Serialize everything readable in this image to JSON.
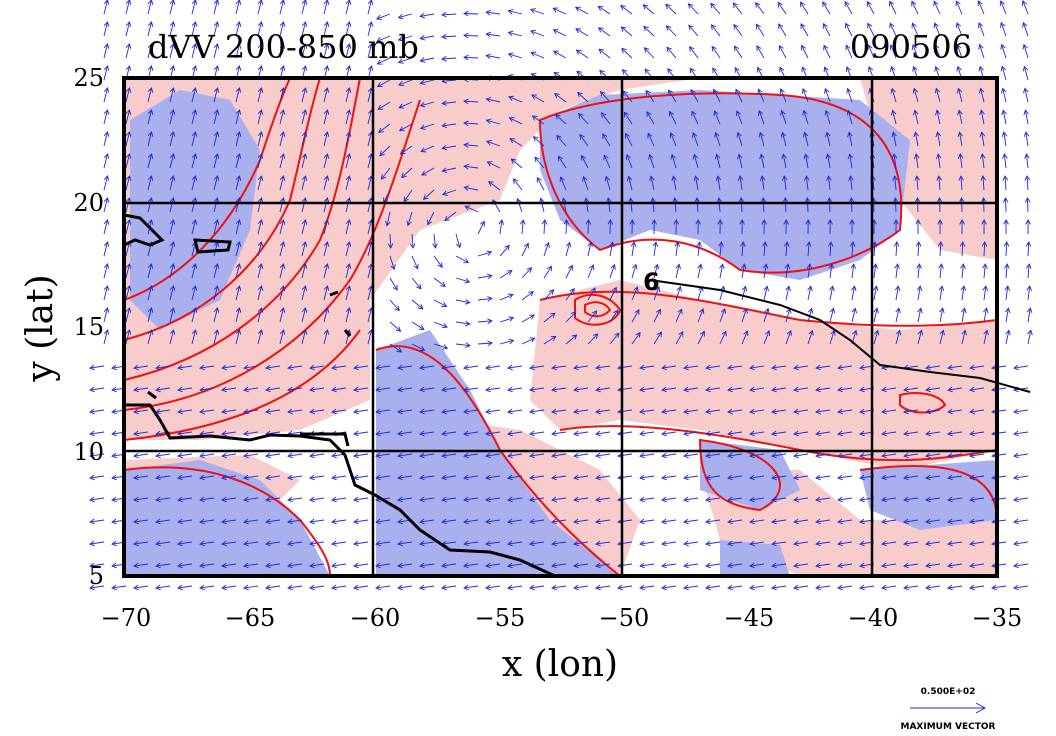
{
  "map": {
    "title_left": "dVV 200-850 mb",
    "title_right": "090506",
    "x_label": "x (lon)",
    "y_label": "y (lat)",
    "x_ticks": [
      "−70",
      "−65",
      "−60",
      "−55",
      "−50",
      "−45",
      "−40",
      "−35"
    ],
    "y_ticks": [
      "25",
      "20",
      "15",
      "10",
      "5"
    ],
    "lon_range": [
      -70,
      -35
    ],
    "lat_range": [
      5,
      25
    ],
    "grid_lines": true,
    "vector_legend": {
      "magnitude": "0.500E+02",
      "label": "MAXIMUM VECTOR"
    },
    "colors": {
      "positive_fill": "#f9cccc",
      "negative_fill": "#aab0ee",
      "contour": "#ee1111",
      "vectors": "#1a2ad8",
      "coastline": "#000000"
    },
    "track_label": "6"
  }
}
